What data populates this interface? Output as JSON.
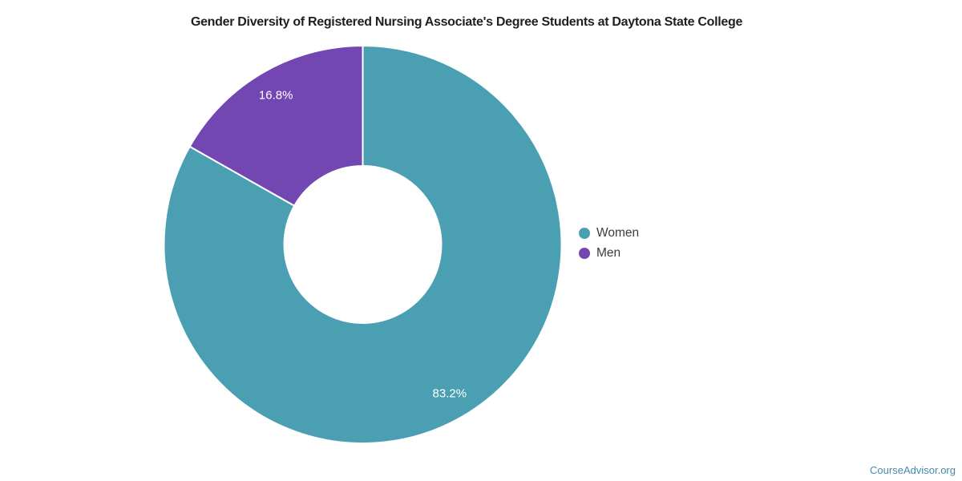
{
  "chart_data": {
    "type": "pie",
    "donut": true,
    "title": "Gender Diversity of Registered Nursing Associate's Degree Students at Daytona State College",
    "categories": [
      "Women",
      "Men"
    ],
    "values": [
      83.2,
      16.8
    ],
    "labels": [
      "83.2%",
      "16.8%"
    ],
    "unit": "%",
    "colors": [
      "#4AA0B2",
      "#7347B2"
    ],
    "slice_label_color": "#ffffff",
    "legend_position": "right",
    "start_angle_deg": 0,
    "direction": "clockwise"
  },
  "legend": {
    "items": [
      {
        "label": "Women",
        "color": "#4AA0B2"
      },
      {
        "label": "Men",
        "color": "#7347B2"
      }
    ]
  },
  "footer": {
    "attribution": "CourseAdvisor.org",
    "color": "#4589AC"
  }
}
